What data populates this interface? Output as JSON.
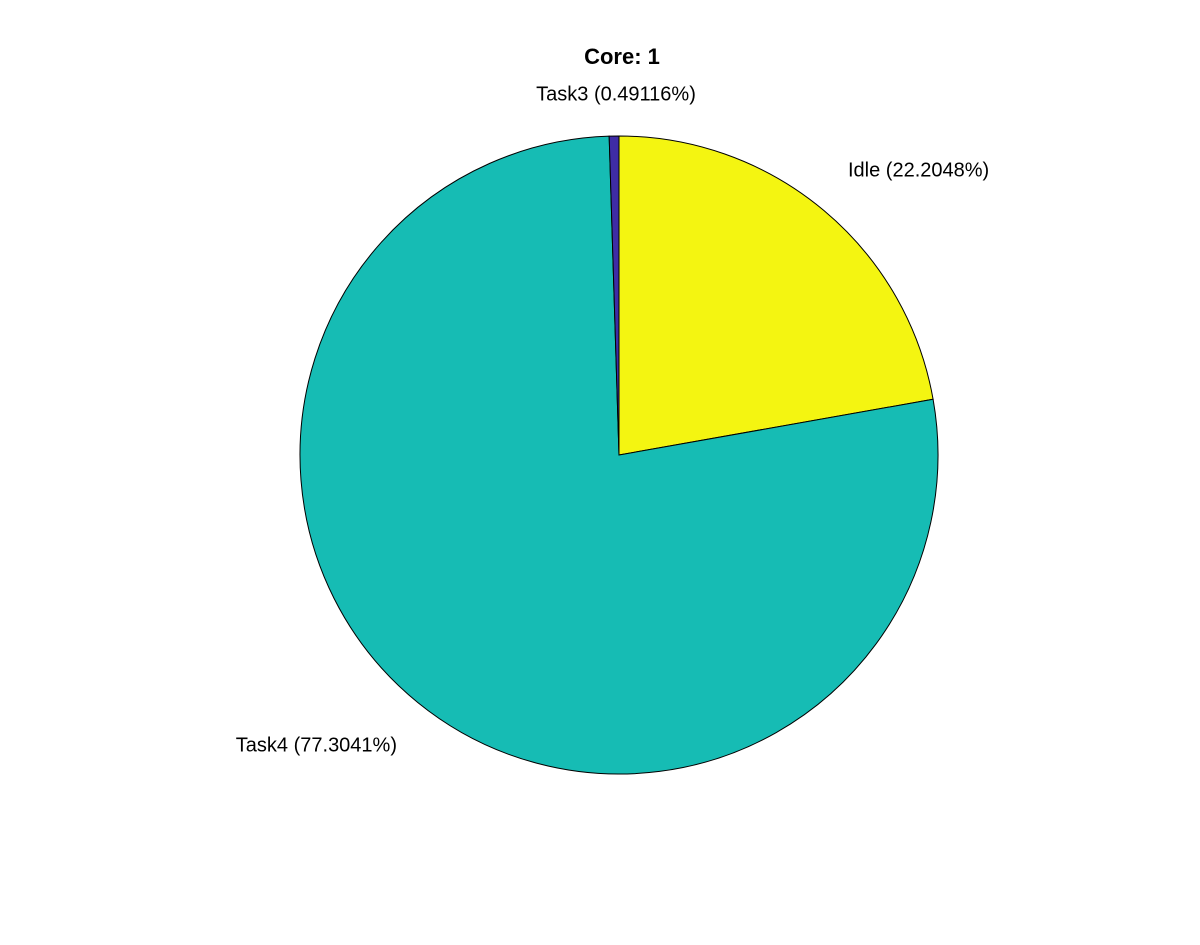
{
  "figure": {
    "title": "Core: 1"
  },
  "chart_data": {
    "type": "pie",
    "title": "Core: 1",
    "unit": "%",
    "start_angle_deg": 90,
    "direction": "clockwise",
    "legend": "none",
    "background": "#ffffff",
    "edge_color": "#000000",
    "slices": [
      {
        "label": "Idle",
        "value": 22.2048,
        "display": "Idle (22.2048%)",
        "color": "#f4f511"
      },
      {
        "label": "Task4",
        "value": 77.3041,
        "display": "Task4 (77.3041%)",
        "color": "#16bcb4"
      },
      {
        "label": "Task3",
        "value": 0.49116,
        "display": "Task3 (0.49116%)",
        "color": "#3e2ca5"
      }
    ]
  }
}
